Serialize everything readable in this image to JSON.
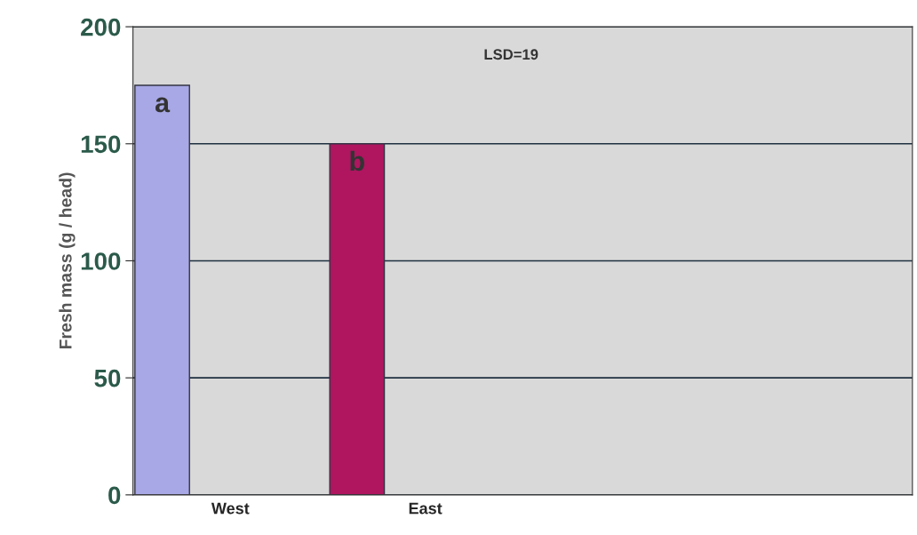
{
  "chart_data": {
    "type": "bar",
    "ylabel": "Fresh mass (g / head)",
    "categories": [
      "West",
      "East",
      null,
      null
    ],
    "values": [
      175,
      150,
      null,
      null
    ],
    "colors": [
      "#a8a8e6",
      "#b01560",
      "#888888",
      "#888888"
    ],
    "ylim": [
      0,
      200
    ],
    "yticks": [
      0,
      50,
      100,
      150,
      200
    ],
    "grid": "y",
    "annotations": [
      "a",
      "b",
      "LSD=19"
    ]
  }
}
